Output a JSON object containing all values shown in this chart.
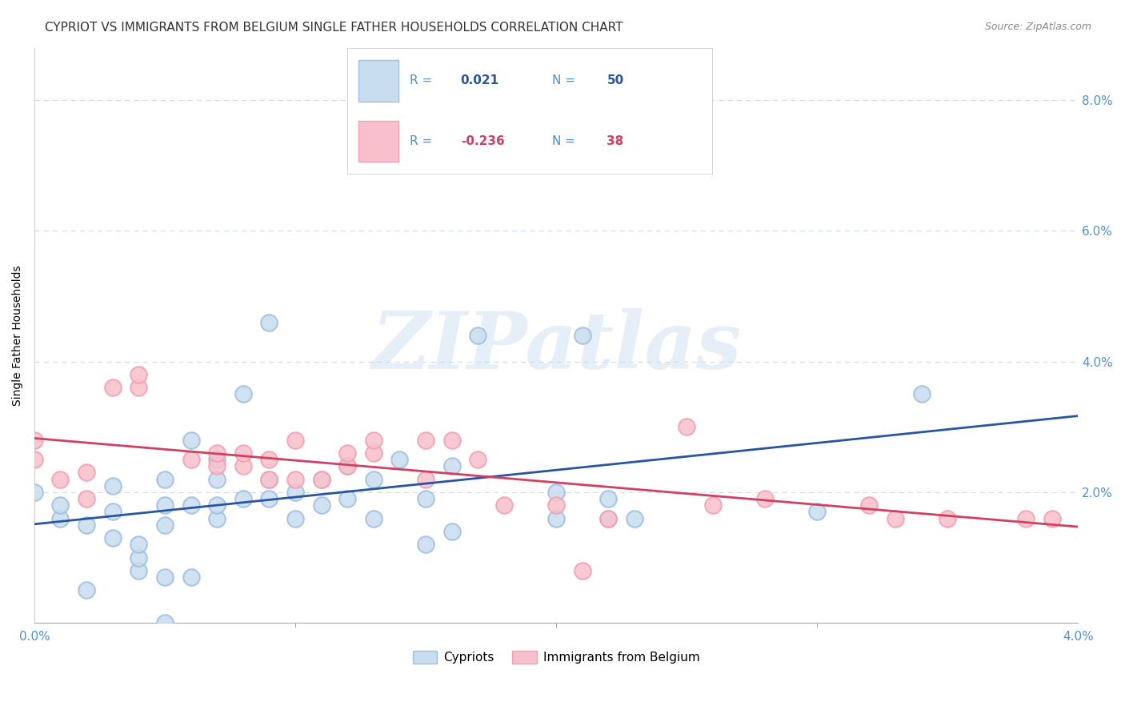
{
  "title": "CYPRIOT VS IMMIGRANTS FROM BELGIUM SINGLE FATHER HOUSEHOLDS CORRELATION CHART",
  "source": "Source: ZipAtlas.com",
  "ylabel": "Single Father Households",
  "watermark": "ZIPatlas",
  "blue_label": "Cypriots",
  "pink_label": "Immigrants from Belgium",
  "blue_R": 0.021,
  "blue_N": 50,
  "pink_R": -0.236,
  "pink_N": 38,
  "blue_face_color": "#c8ddf0",
  "blue_edge_color": "#a0bedd",
  "pink_face_color": "#f8c0cc",
  "pink_edge_color": "#f0a0b0",
  "blue_line_color": "#2855a0",
  "pink_line_color": "#d04060",
  "xlim": [
    0.0,
    0.04
  ],
  "ylim": [
    0.0,
    0.088
  ],
  "right_yticks": [
    0.0,
    0.02,
    0.04,
    0.06,
    0.08
  ],
  "right_yticklabels": [
    "",
    "2.0%",
    "4.0%",
    "6.0%",
    "8.0%"
  ],
  "xticks": [
    0.0,
    0.04
  ],
  "xticklabels": [
    "0.0%",
    "4.0%"
  ],
  "blue_x": [
    0.0,
    0.001,
    0.001,
    0.002,
    0.002,
    0.003,
    0.003,
    0.003,
    0.004,
    0.004,
    0.004,
    0.005,
    0.005,
    0.005,
    0.005,
    0.005,
    0.006,
    0.006,
    0.006,
    0.007,
    0.007,
    0.007,
    0.007,
    0.008,
    0.008,
    0.009,
    0.009,
    0.009,
    0.01,
    0.01,
    0.011,
    0.011,
    0.012,
    0.012,
    0.013,
    0.013,
    0.014,
    0.015,
    0.015,
    0.016,
    0.016,
    0.017,
    0.02,
    0.02,
    0.021,
    0.022,
    0.022,
    0.023,
    0.03,
    0.034
  ],
  "blue_y": [
    0.02,
    0.016,
    0.018,
    0.005,
    0.015,
    0.013,
    0.017,
    0.021,
    0.008,
    0.01,
    0.012,
    0.015,
    0.022,
    0.007,
    0.018,
    0.0,
    0.007,
    0.018,
    0.028,
    0.016,
    0.018,
    0.022,
    0.025,
    0.019,
    0.035,
    0.019,
    0.022,
    0.046,
    0.016,
    0.02,
    0.018,
    0.022,
    0.019,
    0.024,
    0.016,
    0.022,
    0.025,
    0.012,
    0.019,
    0.014,
    0.024,
    0.044,
    0.016,
    0.02,
    0.044,
    0.016,
    0.019,
    0.016,
    0.017,
    0.035
  ],
  "pink_x": [
    0.0,
    0.0,
    0.001,
    0.002,
    0.002,
    0.003,
    0.004,
    0.004,
    0.006,
    0.007,
    0.007,
    0.008,
    0.008,
    0.009,
    0.009,
    0.01,
    0.01,
    0.011,
    0.012,
    0.012,
    0.013,
    0.013,
    0.015,
    0.015,
    0.016,
    0.017,
    0.018,
    0.02,
    0.021,
    0.022,
    0.025,
    0.026,
    0.028,
    0.032,
    0.033,
    0.035,
    0.038,
    0.039
  ],
  "pink_y": [
    0.025,
    0.028,
    0.022,
    0.019,
    0.023,
    0.036,
    0.036,
    0.038,
    0.025,
    0.024,
    0.026,
    0.024,
    0.026,
    0.022,
    0.025,
    0.022,
    0.028,
    0.022,
    0.024,
    0.026,
    0.026,
    0.028,
    0.022,
    0.028,
    0.028,
    0.025,
    0.018,
    0.018,
    0.008,
    0.016,
    0.03,
    0.018,
    0.019,
    0.018,
    0.016,
    0.016,
    0.016,
    0.016
  ],
  "grid_color": "#d0dde8",
  "background_color": "#ffffff",
  "title_fontsize": 11,
  "axis_label_fontsize": 10,
  "tick_fontsize": 11,
  "right_tick_color": "#5090c8",
  "bottom_tick_color": "#5090c8"
}
